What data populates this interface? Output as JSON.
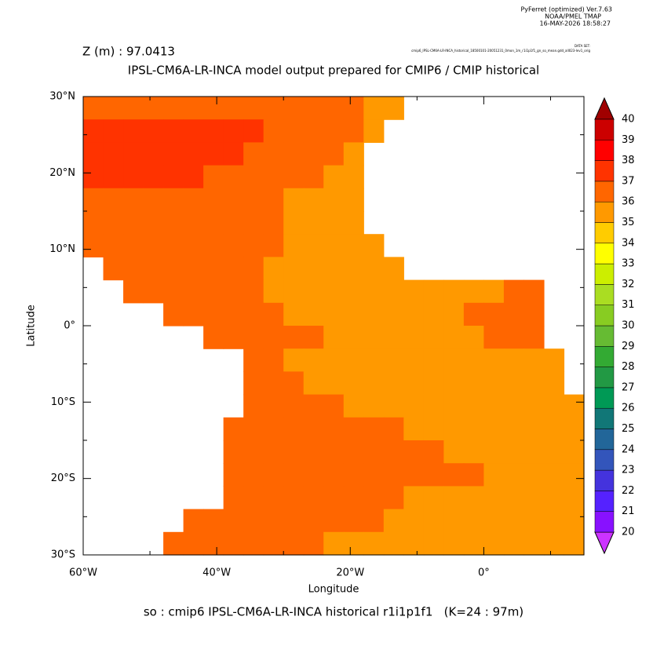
{
  "header": {
    "lines": [
      "PyFerret (optimized) Ver.7.63",
      "NOAA/PMEL TMAP",
      "16-MAY-2026 18:58:27"
    ],
    "dataset_label": "DATA SET:",
    "dataset": "cmip6_IPSL-CM6A-LR-INCA_historical_18500101-20051231_0mon_1m_r1i1p1f1_gn_so_mean.gdd_all023-lev1_orig"
  },
  "chart_data": {
    "type": "heatmap",
    "subtitle": "Z (m) : 97.0413",
    "title": "IPSL-CM6A-LR-INCA model output prepared for CMIP6 / CMIP historical",
    "x_label": "Longitude",
    "y_label": "Latitude",
    "footer": "so : cmip6 IPSL-CM6A-LR-INCA historical r1i1p1f1   (K=24 : 97m)",
    "xlim": [
      -60,
      15
    ],
    "ylim": [
      -30,
      30
    ],
    "xticks": [
      {
        "value": -60,
        "label": "60°W"
      },
      {
        "value": -40,
        "label": "40°W"
      },
      {
        "value": -20,
        "label": "20°W"
      },
      {
        "value": 0,
        "label": "0°"
      }
    ],
    "xminorticks": [
      -50,
      -30,
      -10,
      10
    ],
    "yticks": [
      {
        "value": -30,
        "label": "30°S"
      },
      {
        "value": -20,
        "label": "20°S"
      },
      {
        "value": -10,
        "label": "10°S"
      },
      {
        "value": 0,
        "label": "0°"
      },
      {
        "value": 10,
        "label": "10°N"
      },
      {
        "value": 20,
        "label": "20°N"
      },
      {
        "value": 30,
        "label": "30°N"
      }
    ],
    "yminorticks": [
      -25,
      -15,
      -5,
      5,
      15,
      25
    ],
    "x": [
      -58.5,
      -55.5,
      -52.5,
      -49.5,
      -46.5,
      -43.5,
      -40.5,
      -37.5,
      -34.5,
      -31.5,
      -28.5,
      -25.5,
      -22.5,
      -19.5,
      -16.5,
      -13.5,
      -10.5,
      -7.5,
      -4.5,
      -1.5,
      1.5,
      4.5,
      7.5,
      10.5,
      13.5
    ],
    "y": [
      28.5,
      25.5,
      22.5,
      19.5,
      16.5,
      13.5,
      10.5,
      7.5,
      4.5,
      1.5,
      -1.5,
      -4.5,
      -7.5,
      -10.5,
      -13.5,
      -16.5,
      -19.5,
      -22.5,
      -25.5,
      -28.5
    ],
    "z": [
      [
        36.5,
        36.5,
        36.5,
        36.5,
        36.5,
        36.5,
        36.5,
        36.5,
        36.5,
        36.5,
        36.5,
        36.5,
        36.5,
        36.5,
        35.5,
        35.5,
        null,
        null,
        null,
        null,
        null,
        null,
        null,
        null,
        null
      ],
      [
        37.5,
        37.5,
        37.5,
        37.5,
        37.5,
        37.5,
        37.5,
        37.5,
        37.5,
        36.5,
        36.5,
        36.5,
        36.5,
        36.5,
        35.5,
        null,
        null,
        null,
        null,
        null,
        null,
        null,
        null,
        null,
        null
      ],
      [
        37.5,
        37.5,
        37.5,
        37.5,
        37.5,
        37.5,
        37.5,
        37.5,
        36.5,
        36.5,
        36.5,
        36.5,
        36.5,
        35.5,
        null,
        null,
        null,
        null,
        null,
        null,
        null,
        null,
        null,
        null,
        null
      ],
      [
        37.5,
        37.5,
        37.5,
        37.5,
        37.5,
        37.5,
        36.5,
        36.5,
        36.5,
        36.5,
        36.5,
        36.5,
        35.5,
        35.5,
        null,
        null,
        null,
        null,
        null,
        null,
        null,
        null,
        null,
        null,
        null
      ],
      [
        36.5,
        36.5,
        36.5,
        36.5,
        36.5,
        36.5,
        36.5,
        36.5,
        36.5,
        36.5,
        35.5,
        35.5,
        35.5,
        35.5,
        null,
        null,
        null,
        null,
        null,
        null,
        null,
        null,
        null,
        null,
        null
      ],
      [
        36.5,
        36.5,
        36.5,
        36.5,
        36.5,
        36.5,
        36.5,
        36.5,
        36.5,
        36.5,
        35.5,
        35.5,
        35.5,
        35.5,
        null,
        null,
        null,
        null,
        null,
        null,
        null,
        null,
        null,
        null,
        null
      ],
      [
        36.5,
        36.5,
        36.5,
        36.5,
        36.5,
        36.5,
        36.5,
        36.5,
        36.5,
        36.5,
        35.5,
        35.5,
        35.5,
        35.5,
        35.5,
        null,
        null,
        null,
        null,
        null,
        null,
        null,
        null,
        null,
        null
      ],
      [
        null,
        36.5,
        36.5,
        36.5,
        36.5,
        36.5,
        36.5,
        36.5,
        36.5,
        35.5,
        35.5,
        35.5,
        35.5,
        35.5,
        35.5,
        35.5,
        null,
        null,
        null,
        null,
        null,
        null,
        null,
        null,
        null
      ],
      [
        null,
        null,
        36.5,
        36.5,
        36.5,
        36.5,
        36.5,
        36.5,
        36.5,
        35.5,
        35.5,
        35.5,
        35.5,
        35.5,
        35.5,
        35.5,
        35.5,
        35.5,
        35.5,
        35.5,
        35.5,
        36.5,
        36.5,
        null,
        null
      ],
      [
        null,
        null,
        null,
        null,
        36.5,
        36.5,
        36.5,
        36.5,
        36.5,
        36.5,
        35.5,
        35.5,
        35.5,
        35.5,
        35.5,
        35.5,
        35.5,
        35.5,
        35.5,
        36.5,
        36.5,
        36.5,
        36.5,
        null,
        null
      ],
      [
        null,
        null,
        null,
        null,
        null,
        null,
        36.5,
        36.5,
        36.5,
        36.5,
        36.5,
        36.5,
        35.5,
        35.5,
        35.5,
        35.5,
        35.5,
        35.5,
        35.5,
        35.5,
        36.5,
        36.5,
        36.5,
        null,
        null
      ],
      [
        null,
        null,
        null,
        null,
        null,
        null,
        null,
        null,
        36.5,
        36.5,
        35.5,
        35.5,
        35.5,
        35.5,
        35.5,
        35.5,
        35.5,
        35.5,
        35.5,
        35.5,
        35.5,
        35.5,
        35.5,
        35.5,
        null
      ],
      [
        null,
        null,
        null,
        null,
        null,
        null,
        null,
        null,
        36.5,
        36.5,
        36.5,
        35.5,
        35.5,
        35.5,
        35.5,
        35.5,
        35.5,
        35.5,
        35.5,
        35.5,
        35.5,
        35.5,
        35.5,
        35.5,
        null
      ],
      [
        null,
        null,
        null,
        null,
        null,
        null,
        null,
        null,
        36.5,
        36.5,
        36.5,
        36.5,
        36.5,
        35.5,
        35.5,
        35.5,
        35.5,
        35.5,
        35.5,
        35.5,
        35.5,
        35.5,
        35.5,
        35.5,
        35.5
      ],
      [
        null,
        null,
        null,
        null,
        null,
        null,
        null,
        36.5,
        36.5,
        36.5,
        36.5,
        36.5,
        36.5,
        36.5,
        36.5,
        36.5,
        35.5,
        35.5,
        35.5,
        35.5,
        35.5,
        35.5,
        35.5,
        35.5,
        35.5
      ],
      [
        null,
        null,
        null,
        null,
        null,
        null,
        null,
        36.5,
        36.5,
        36.5,
        36.5,
        36.5,
        36.5,
        36.5,
        36.5,
        36.5,
        36.5,
        36.5,
        35.5,
        35.5,
        35.5,
        35.5,
        35.5,
        35.5,
        35.5
      ],
      [
        null,
        null,
        null,
        null,
        null,
        null,
        null,
        36.5,
        36.5,
        36.5,
        36.5,
        36.5,
        36.5,
        36.5,
        36.5,
        36.5,
        36.5,
        36.5,
        36.5,
        36.5,
        35.5,
        35.5,
        35.5,
        35.5,
        35.5
      ],
      [
        null,
        null,
        null,
        null,
        null,
        null,
        null,
        36.5,
        36.5,
        36.5,
        36.5,
        36.5,
        36.5,
        36.5,
        36.5,
        36.5,
        35.5,
        35.5,
        35.5,
        35.5,
        35.5,
        35.5,
        35.5,
        35.5,
        35.5
      ],
      [
        null,
        null,
        null,
        null,
        null,
        36.5,
        36.5,
        36.5,
        36.5,
        36.5,
        36.5,
        36.5,
        36.5,
        36.5,
        36.5,
        35.5,
        35.5,
        35.5,
        35.5,
        35.5,
        35.5,
        35.5,
        35.5,
        35.5,
        35.5
      ],
      [
        null,
        null,
        null,
        null,
        36.5,
        36.5,
        36.5,
        36.5,
        36.5,
        36.5,
        36.5,
        36.5,
        35.5,
        35.5,
        35.5,
        35.5,
        35.5,
        35.5,
        35.5,
        35.5,
        35.5,
        35.5,
        35.5,
        35.5,
        35.5
      ]
    ],
    "colorbar": {
      "levels": [
        20,
        21,
        22,
        23,
        24,
        25,
        26,
        27,
        28,
        29,
        30,
        31,
        32,
        33,
        34,
        35,
        36,
        37,
        38,
        39,
        40
      ],
      "colors": [
        "#cc33ff",
        "#8811ff",
        "#5522ff",
        "#4433dd",
        "#3355bb",
        "#226699",
        "#117777",
        "#009955",
        "#229944",
        "#33aa33",
        "#66bb33",
        "#88cc22",
        "#aadd22",
        "#ccee00",
        "#ffff00",
        "#ffcc00",
        "#ff9900",
        "#ff6600",
        "#ff3300",
        "#ff0000",
        "#cc0000",
        "#a00000"
      ]
    }
  }
}
